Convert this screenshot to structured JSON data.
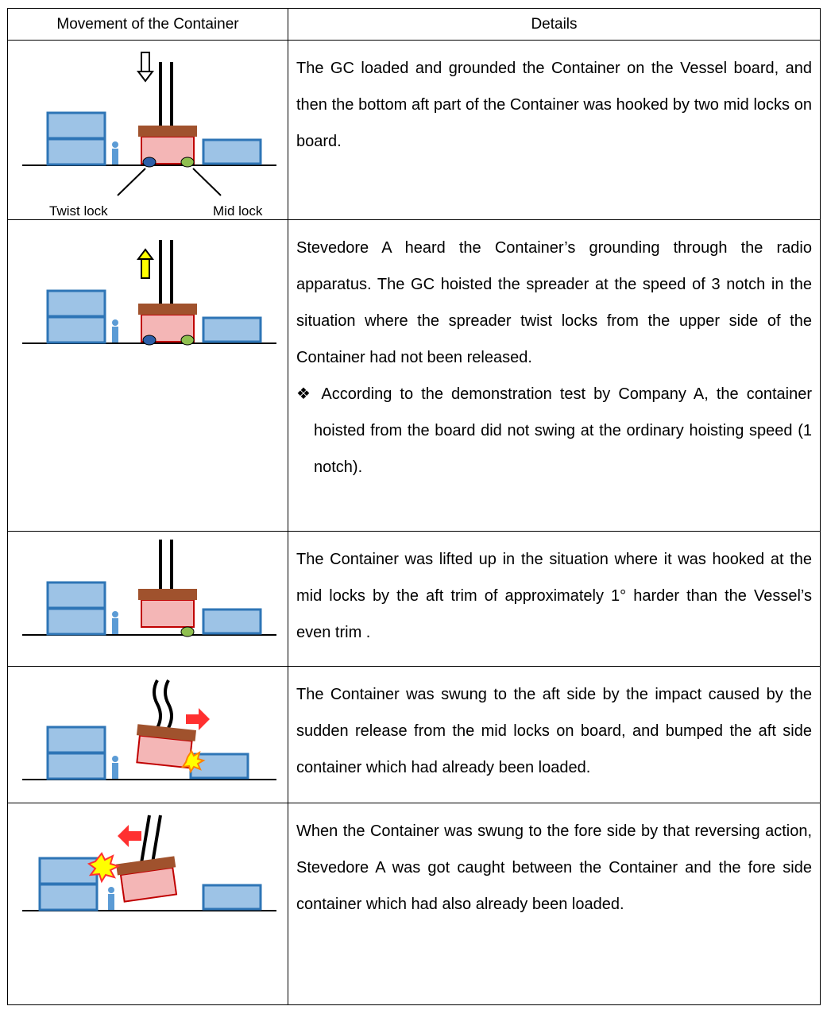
{
  "table": {
    "header": [
      "Movement of the Container",
      "Details"
    ],
    "rows": [
      {
        "labels": [
          "Twist lock",
          "Mid lock"
        ],
        "details": [
          "The GC loaded and grounded the Container on the Vessel board, and then the bottom aft part of the Container was hooked by two mid locks on board."
        ]
      },
      {
        "details": [
          "Stevedore A heard the Container’s grounding through the radio apparatus.  The GC hoisted the spreader at the speed of 3 notch in the situation where the spreader twist locks from the upper side of the Container had not been released.",
          "❖ According to the demonstration test by Company A, the container hoisted from the board did not swing at the ordinary hoisting speed (1 notch)."
        ]
      },
      {
        "details": [
          "The Container was lifted up in the situation where it was hooked at the mid locks by the aft trim of approximately 1° harder than the Vessel’s even trim ."
        ]
      },
      {
        "details": [
          "The Container was swung to the aft side by the impact caused by the sudden release from the mid locks on board, and bumped the aft side container which had already been loaded."
        ]
      },
      {
        "details": [
          "When the Container was swung to the fore side by that reversing action, Stevedore A was got caught between the Container and the fore side container which had also already been loaded."
        ]
      }
    ]
  }
}
